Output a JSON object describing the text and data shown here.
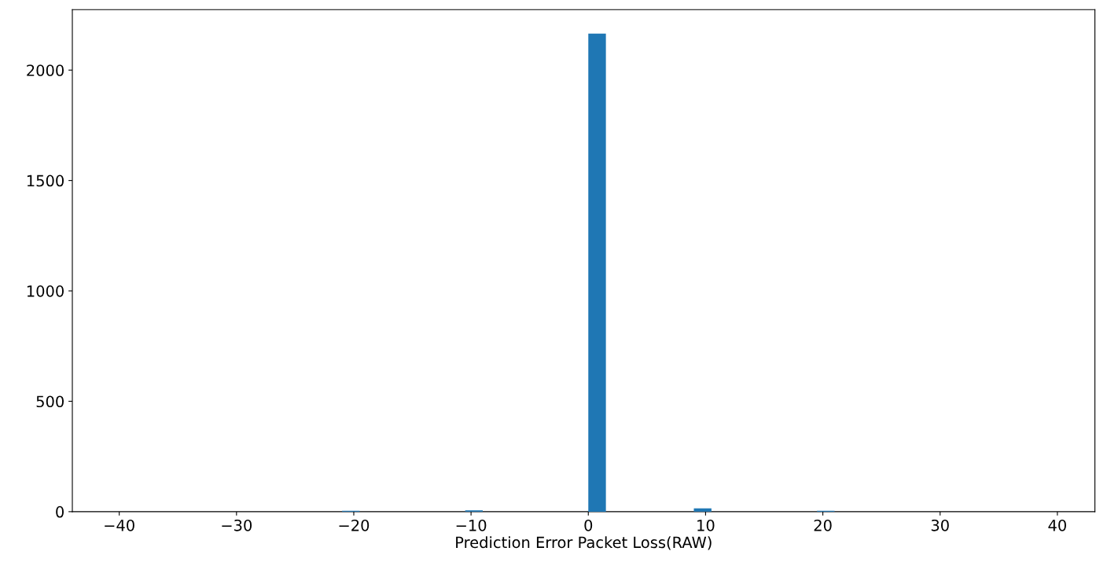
{
  "chart_data": {
    "type": "histogram",
    "xlabel": "Prediction Error Packet Loss(RAW)",
    "bins": [
      -21,
      -19.5,
      -18,
      -16.5,
      -15,
      -13.5,
      -12,
      -10.5,
      -9,
      -7.5,
      -6,
      -4.5,
      -3,
      -1.5,
      0,
      1.5,
      3,
      4.5,
      6,
      7.5,
      9,
      10.5,
      12,
      13.5,
      15,
      16.5,
      18,
      19.5,
      21
    ],
    "values": [
      4,
      0,
      0,
      0,
      0,
      0,
      0,
      6,
      0,
      0,
      0,
      0,
      0,
      0,
      2165,
      0,
      0,
      0,
      0,
      0,
      15,
      0,
      0,
      0,
      0,
      0,
      0,
      4
    ],
    "color": "#1f77b4",
    "xlim": [
      -44,
      43.2
    ],
    "ylim": [
      0,
      2274
    ],
    "xticks": [
      {
        "value": -40,
        "label": "−40"
      },
      {
        "value": -30,
        "label": "−30"
      },
      {
        "value": -20,
        "label": "−20"
      },
      {
        "value": -10,
        "label": "−10"
      },
      0,
      10,
      20,
      30,
      40
    ],
    "yticks": [
      0,
      500,
      1000,
      1500,
      2000
    ],
    "grid": false
  }
}
